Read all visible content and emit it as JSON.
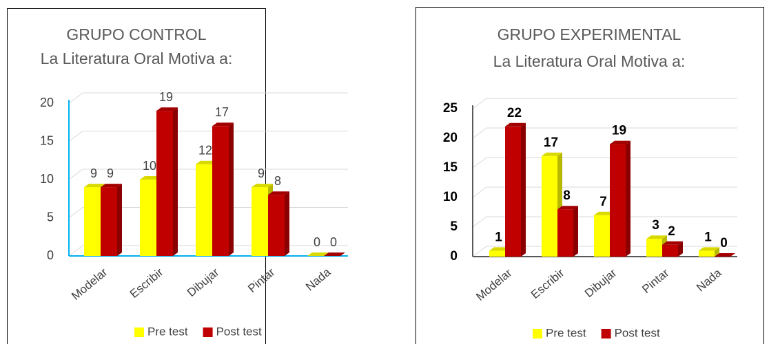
{
  "chart_data": [
    {
      "type": "bar",
      "title": "GRUPO CONTROL",
      "subtitle": "La Literatura Oral Motiva a:",
      "categories": [
        "Modelar",
        "Escribir",
        "Dibujar",
        "Pintar",
        "Nada"
      ],
      "series": [
        {
          "name": "Pre test",
          "color": "#ffff00",
          "values": [
            9,
            10,
            12,
            9,
            0
          ]
        },
        {
          "name": "Post test",
          "color": "#c00000",
          "values": [
            9,
            19,
            17,
            8,
            0
          ]
        }
      ],
      "ylim": [
        0,
        20
      ],
      "yticks": [
        0,
        5,
        10,
        15,
        20
      ],
      "grid": true,
      "legend": "bottom"
    },
    {
      "type": "bar",
      "title": "GRUPO EXPERIMENTAL",
      "subtitle": "La Literatura Oral Motiva a:",
      "categories": [
        "Modelar",
        "Escribir",
        "Dibujar",
        "Pintar",
        "Nada"
      ],
      "series": [
        {
          "name": "Pre test",
          "color": "#ffff00",
          "values": [
            1,
            17,
            7,
            3,
            1
          ]
        },
        {
          "name": "Post test",
          "color": "#c00000",
          "values": [
            22,
            8,
            19,
            2,
            0
          ]
        }
      ],
      "ylim": [
        0,
        25
      ],
      "yticks": [
        0,
        5,
        10,
        15,
        20,
        25
      ],
      "grid": true,
      "legend": "bottom"
    }
  ]
}
